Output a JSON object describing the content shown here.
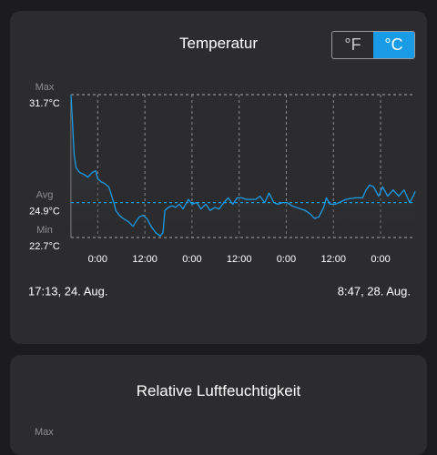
{
  "cards": [
    {
      "title": "Temperatur",
      "unit_toggle": {
        "options": [
          "°F",
          "°C"
        ],
        "selected": 1,
        "selected_color": "#1a9be6"
      },
      "chart_data": {
        "type": "line",
        "xlim": [
          17.2,
          104.8
        ],
        "ylim": [
          22.7,
          31.7
        ],
        "xticks": [
          {
            "value": 24,
            "label": "0:00"
          },
          {
            "value": 36,
            "label": "12:00"
          },
          {
            "value": 48,
            "label": "0:00"
          },
          {
            "value": 60,
            "label": "12:00"
          },
          {
            "value": 72,
            "label": "0:00"
          },
          {
            "value": 84,
            "label": "12:00"
          },
          {
            "value": 96,
            "label": "0:00"
          }
        ],
        "grid": true,
        "reference_lines": [
          {
            "name": "Max",
            "value": 31.7,
            "label": "31.7°C",
            "color": "#8e8e93"
          },
          {
            "name": "Avg",
            "value": 24.9,
            "label": "24.9°C",
            "color": "#1a9be6"
          },
          {
            "name": "Min",
            "value": 22.7,
            "label": "22.7°C",
            "color": "#8e8e93"
          }
        ],
        "x": [
          17.2,
          18.0,
          18.5,
          19.4,
          20.3,
          21.5,
          22.6,
          23.5,
          24.0,
          24.9,
          25.8,
          26.8,
          27.2,
          27.7,
          28.2,
          28.6,
          29.5,
          30.5,
          31.8,
          33.0,
          33.7,
          34.6,
          35.5,
          36.5,
          37.6,
          38.8,
          39.9,
          40.6,
          41.1,
          42.0,
          42.9,
          43.8,
          44.8,
          45.7,
          47.1,
          48.0,
          49.2,
          50.3,
          51.5,
          52.6,
          53.8,
          54.9,
          56.1,
          57.2,
          58.4,
          59.5,
          60.7,
          61.8,
          64.2,
          65.3,
          66.5,
          67.6,
          68.8,
          69.9,
          71.1,
          72.2,
          73.4,
          74.5,
          75.7,
          76.8,
          78.0,
          79.2,
          80.3,
          81.5,
          82.2,
          83.1,
          84.5,
          85.4,
          87.2,
          89.5,
          91.4,
          92.3,
          93.2,
          94.2,
          95.5,
          96.5,
          97.8,
          99.2,
          100.6,
          102.0,
          103.4,
          104.3,
          104.8
        ],
        "series": [
          {
            "color": "#1a9be6",
            "values": [
              31.7,
              27.9,
              27.1,
              26.8,
              26.7,
              26.5,
              26.8,
              26.9,
              26.4,
              26.2,
              26.1,
              25.9,
              25.6,
              25.2,
              24.8,
              24.4,
              24.1,
              23.9,
              23.7,
              23.4,
              23.7,
              24.0,
              24.1,
              23.9,
              23.4,
              23.0,
              22.8,
              23.0,
              24.4,
              24.6,
              24.7,
              24.6,
              24.8,
              24.5,
              25.1,
              24.8,
              24.9,
              24.5,
              24.8,
              24.4,
              24.6,
              24.5,
              24.9,
              25.2,
              24.8,
              25.2,
              25.2,
              25.1,
              25.1,
              25.3,
              24.9,
              25.5,
              24.9,
              24.8,
              24.9,
              24.9,
              24.7,
              24.6,
              24.5,
              24.4,
              24.2,
              23.9,
              24.0,
              24.6,
              25.2,
              24.8,
              24.8,
              24.9,
              25.1,
              25.2,
              25.2,
              25.7,
              26.0,
              25.9,
              25.3,
              25.9,
              25.3,
              25.7,
              25.3,
              25.7,
              24.9,
              25.3,
              25.6
            ]
          }
        ],
        "start_label": "17:13, 24. Aug.",
        "end_label": "8:47, 28. Aug."
      }
    },
    {
      "title": "Relative Luftfeuchtigkeit",
      "axis_labels": [
        "Max"
      ]
    }
  ]
}
